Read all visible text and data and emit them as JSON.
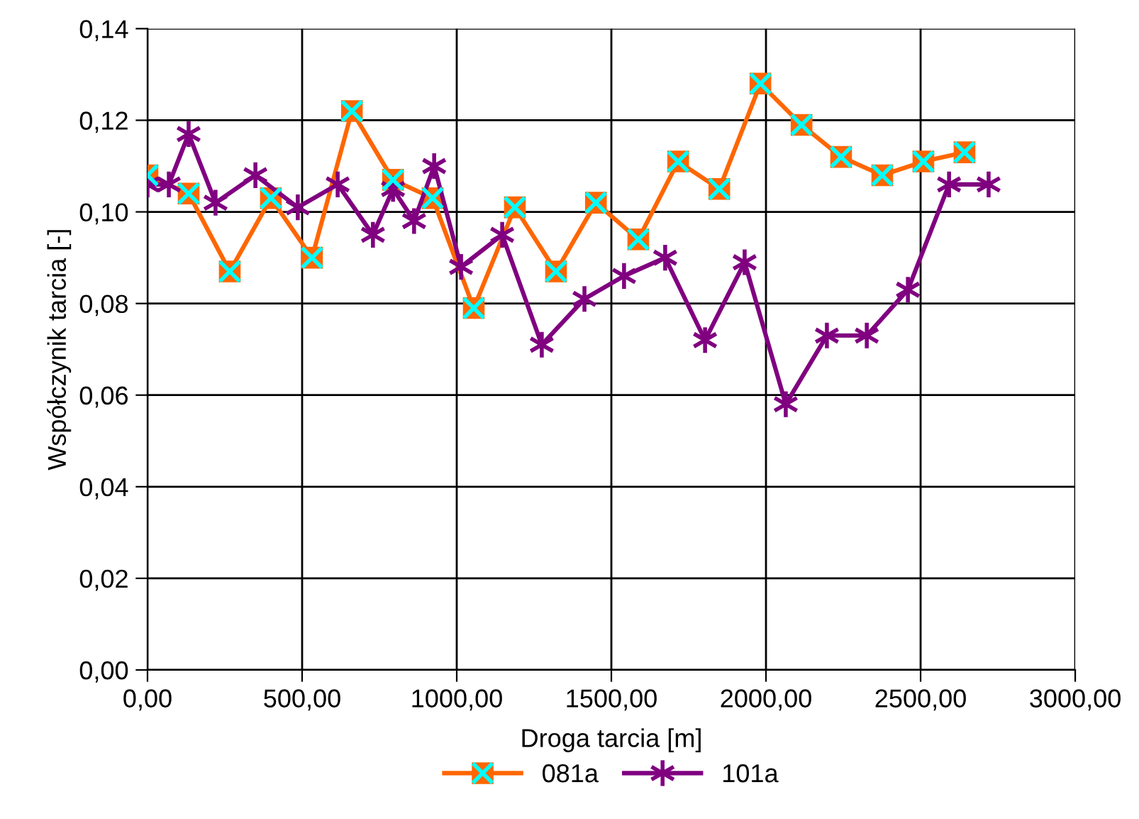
{
  "chart_data": {
    "type": "line",
    "xlabel": "Droga tarcia [m]",
    "ylabel": "Współczynik tarcia [-]",
    "xlim": [
      0,
      3000
    ],
    "xticks": [
      {
        "value": 0,
        "label": "0,00"
      },
      {
        "value": 500,
        "label": "500,00"
      },
      {
        "value": 1000,
        "label": "1000,00"
      },
      {
        "value": 1500,
        "label": "1500,00"
      },
      {
        "value": 2000,
        "label": "2000,00"
      },
      {
        "value": 2500,
        "label": "2500,00"
      },
      {
        "value": 3000,
        "label": "3000,00"
      }
    ],
    "ylim": [
      0,
      0.14
    ],
    "yticks": [
      {
        "value": 0,
        "label": "0,00"
      },
      {
        "value": 0.02,
        "label": "0,02"
      },
      {
        "value": 0.04,
        "label": "0,04"
      },
      {
        "value": 0.06,
        "label": "0,06"
      },
      {
        "value": 0.08,
        "label": "0,08"
      },
      {
        "value": 0.1,
        "label": "0,10"
      },
      {
        "value": 0.12,
        "label": "0,12"
      },
      {
        "value": 0.14,
        "label": "0,14"
      }
    ],
    "grid": true,
    "legend": "bottom",
    "series": [
      {
        "name": "081a",
        "color": "#ff6600",
        "marker": "square",
        "x": [
          0,
          133,
          266,
          399,
          532,
          661,
          794,
          922,
          1055,
          1188,
          1321,
          1450,
          1587,
          1716,
          1849,
          1982,
          2115,
          2243,
          2376,
          2509,
          2642
        ],
        "values": [
          0.108,
          0.104,
          0.087,
          0.103,
          0.09,
          0.122,
          0.107,
          0.103,
          0.079,
          0.101,
          0.087,
          0.102,
          0.094,
          0.111,
          0.105,
          0.128,
          0.119,
          0.112,
          0.108,
          0.111,
          0.113
        ]
      },
      {
        "name": "101a",
        "color": "#800080",
        "marker": "cross",
        "x": [
          0,
          69,
          133,
          220,
          349,
          486,
          615,
          729,
          794,
          862,
          927,
          1014,
          1147,
          1275,
          1413,
          1541,
          1674,
          1803,
          1931,
          2064,
          2197,
          2326,
          2459,
          2592,
          2720
        ],
        "values": [
          0.106,
          0.106,
          0.117,
          0.102,
          0.108,
          0.101,
          0.106,
          0.095,
          0.105,
          0.098,
          0.11,
          0.088,
          0.095,
          0.071,
          0.081,
          0.086,
          0.09,
          0.072,
          0.089,
          0.058,
          0.073,
          0.073,
          0.083,
          0.106,
          0.106
        ]
      }
    ]
  }
}
